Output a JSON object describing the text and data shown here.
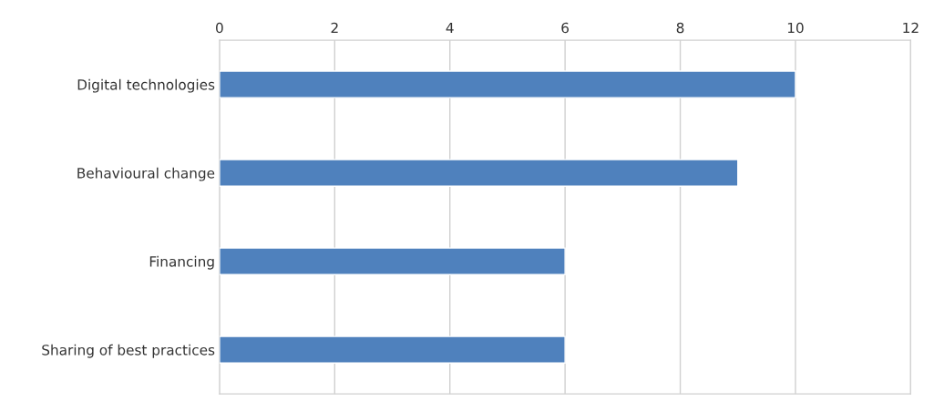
{
  "chart_data": {
    "type": "bar",
    "orientation": "horizontal",
    "categories": [
      "Digital technologies",
      "Behavioural change",
      "Financing",
      "Sharing of best practices"
    ],
    "values": [
      10,
      9,
      6,
      6
    ],
    "color": "#4f81bd",
    "xlim": [
      0,
      12
    ],
    "xticks": [
      0,
      2,
      4,
      6,
      8,
      10,
      12
    ],
    "grid": "x",
    "legend": false
  }
}
